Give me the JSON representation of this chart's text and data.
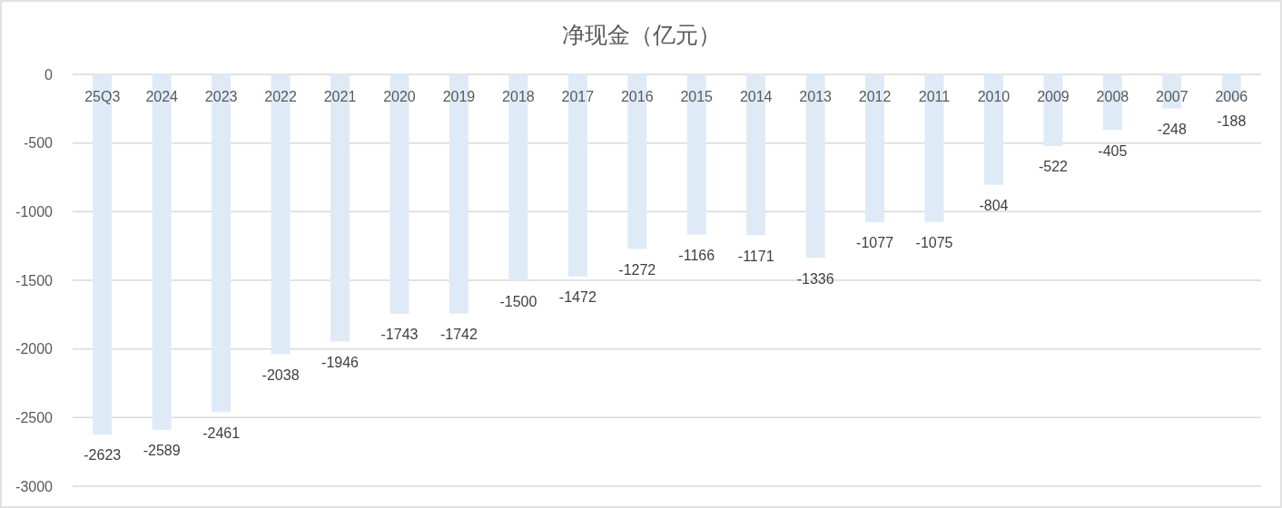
{
  "chart_data": {
    "type": "bar",
    "title": "净现金（亿元）",
    "categories": [
      "25Q3",
      "2024",
      "2023",
      "2022",
      "2021",
      "2020",
      "2019",
      "2018",
      "2017",
      "2016",
      "2015",
      "2014",
      "2013",
      "2012",
      "2011",
      "2010",
      "2009",
      "2008",
      "2007",
      "2006"
    ],
    "values": [
      -2623,
      -2589,
      -2461,
      -2038,
      -1946,
      -1743,
      -1742,
      -1500,
      -1472,
      -1272,
      -1166,
      -1171,
      -1336,
      -1077,
      -1075,
      -804,
      -522,
      -405,
      -248,
      -188
    ],
    "color": "#deebf7",
    "ylim": [
      -3000,
      0
    ],
    "yticks": [
      -3000,
      -2500,
      -2000,
      -1500,
      -1000,
      -500,
      0
    ],
    "grid": "y",
    "data_labels": true
  }
}
